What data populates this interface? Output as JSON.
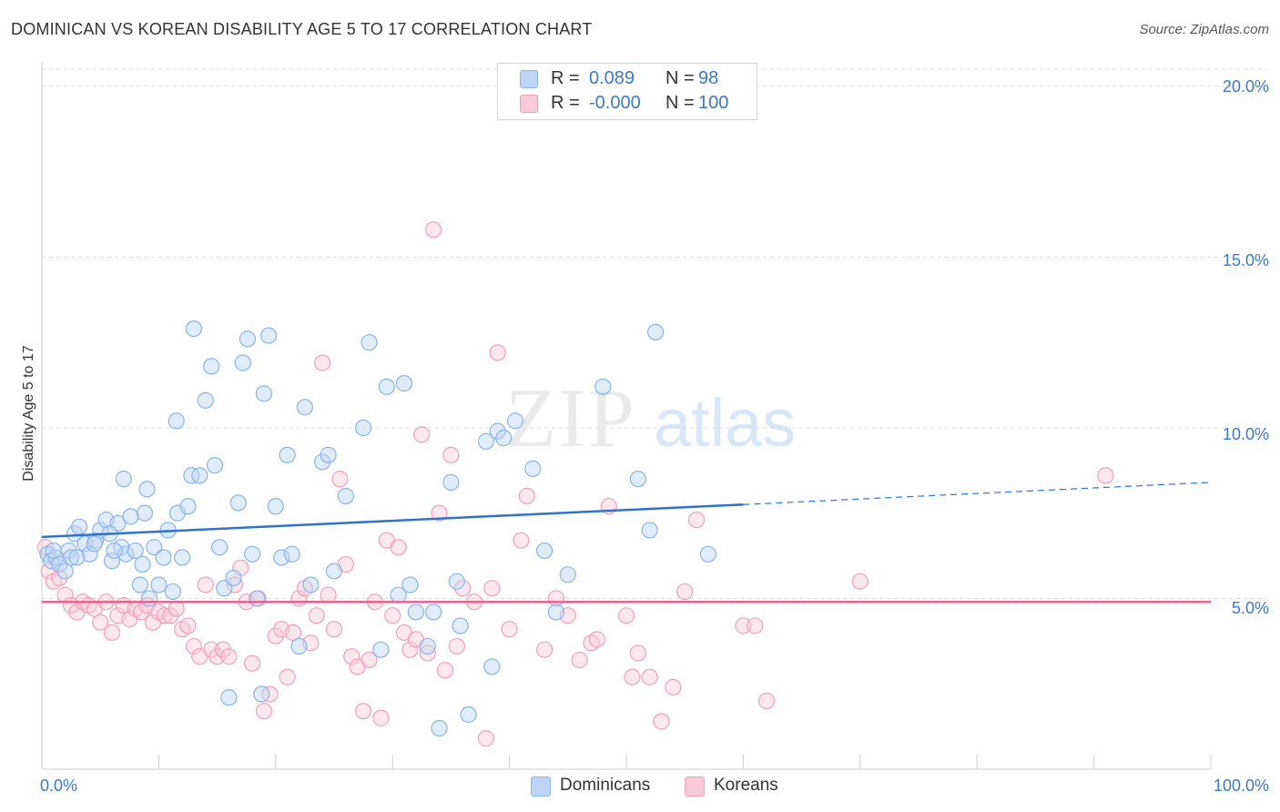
{
  "title": "DOMINICAN VS KOREAN DISABILITY AGE 5 TO 17 CORRELATION CHART",
  "source": "Source: ZipAtlas.com",
  "colors": {
    "blue": "#8ab4e8",
    "blue_line": "#2f72c9",
    "pink": "#f2a0b8",
    "pink_line": "#e8628e",
    "axis_text": "#3a78c9"
  },
  "legend": {
    "rows": [
      {
        "r_label": "R =",
        "r_value": "0.089",
        "n_label": "N =",
        "n_value": "98"
      },
      {
        "r_label": "R =",
        "r_value": "-0.000",
        "n_label": "N =",
        "n_value": "100"
      }
    ]
  },
  "bottom_legend": {
    "items": [
      {
        "label": "Dominicans"
      },
      {
        "label": "Koreans"
      }
    ]
  },
  "chart_data": {
    "type": "scatter",
    "title": "DOMINICAN VS KOREAN DISABILITY AGE 5 TO 17 CORRELATION CHART",
    "ylabel": "Disability Age 5 to 17",
    "xlabel": "",
    "x_tick_labels": [
      "0.0%",
      "100.0%"
    ],
    "y_tick_labels": [
      "5.0%",
      "10.0%",
      "15.0%",
      "20.0%"
    ],
    "y_ticks": [
      5,
      10,
      15,
      20
    ],
    "xlim": [
      0,
      100
    ],
    "ylim": [
      0,
      20.5
    ],
    "grid": "horizontal dashed",
    "legend_position": "top-center",
    "watermark": "ZIPatlas",
    "series": [
      {
        "name": "Dominicans",
        "R": 0.089,
        "N": 98,
        "trend": {
          "x_solid_end": 60,
          "x_dashed_end": 100,
          "y_at_0": 6.8,
          "y_at_60": 7.75,
          "y_at_100": 8.4
        },
        "points": [
          [
            0.5,
            6.3
          ],
          [
            0.8,
            6.1
          ],
          [
            1.2,
            6.2
          ],
          [
            1.5,
            6.0
          ],
          [
            2.0,
            5.8
          ],
          [
            2.3,
            6.4
          ],
          [
            2.8,
            6.9
          ],
          [
            3.2,
            7.1
          ],
          [
            3.7,
            6.6
          ],
          [
            4.1,
            6.3
          ],
          [
            4.6,
            6.7
          ],
          [
            5.0,
            7.0
          ],
          [
            5.5,
            7.3
          ],
          [
            6.0,
            6.1
          ],
          [
            6.5,
            7.2
          ],
          [
            6.8,
            6.5
          ],
          [
            7.2,
            6.3
          ],
          [
            7.6,
            7.4
          ],
          [
            8.0,
            6.4
          ],
          [
            8.4,
            5.4
          ],
          [
            8.8,
            7.5
          ],
          [
            9.2,
            5.0
          ],
          [
            9.6,
            6.5
          ],
          [
            10.0,
            5.4
          ],
          [
            10.4,
            6.2
          ],
          [
            10.8,
            7.0
          ],
          [
            11.2,
            5.2
          ],
          [
            11.6,
            7.5
          ],
          [
            12.0,
            6.2
          ],
          [
            12.5,
            7.7
          ],
          [
            7.0,
            8.5
          ],
          [
            9.0,
            8.2
          ],
          [
            11.5,
            10.2
          ],
          [
            12.8,
            8.6
          ],
          [
            13.5,
            8.6
          ],
          [
            14.0,
            10.8
          ],
          [
            14.5,
            11.8
          ],
          [
            13.0,
            12.9
          ],
          [
            14.8,
            8.9
          ],
          [
            15.2,
            6.5
          ],
          [
            15.6,
            5.3
          ],
          [
            16.0,
            2.1
          ],
          [
            16.4,
            5.6
          ],
          [
            16.8,
            7.8
          ],
          [
            17.2,
            11.9
          ],
          [
            17.6,
            12.6
          ],
          [
            18.0,
            6.3
          ],
          [
            18.4,
            5.0
          ],
          [
            18.8,
            2.2
          ],
          [
            19.0,
            11.0
          ],
          [
            19.4,
            12.7
          ],
          [
            20.0,
            7.7
          ],
          [
            20.5,
            6.2
          ],
          [
            21.0,
            9.2
          ],
          [
            21.4,
            6.3
          ],
          [
            22.0,
            3.6
          ],
          [
            22.5,
            10.6
          ],
          [
            23.0,
            5.4
          ],
          [
            24.0,
            9.0
          ],
          [
            24.5,
            9.2
          ],
          [
            25.0,
            5.8
          ],
          [
            26.0,
            8.0
          ],
          [
            27.5,
            10.0
          ],
          [
            28.0,
            12.5
          ],
          [
            29.0,
            3.5
          ],
          [
            29.5,
            11.2
          ],
          [
            30.5,
            5.1
          ],
          [
            31.0,
            11.3
          ],
          [
            31.5,
            5.4
          ],
          [
            32.0,
            4.6
          ],
          [
            33.0,
            3.6
          ],
          [
            33.5,
            4.6
          ],
          [
            34.0,
            1.2
          ],
          [
            35.0,
            8.4
          ],
          [
            35.5,
            5.5
          ],
          [
            35.8,
            4.2
          ],
          [
            36.5,
            1.6
          ],
          [
            38.0,
            9.6
          ],
          [
            39.0,
            9.9
          ],
          [
            39.5,
            9.7
          ],
          [
            38.5,
            3.0
          ],
          [
            40.5,
            10.2
          ],
          [
            42.0,
            8.8
          ],
          [
            43.0,
            6.4
          ],
          [
            44.0,
            4.6
          ],
          [
            45.0,
            5.7
          ],
          [
            48.0,
            11.2
          ],
          [
            51.0,
            8.5
          ],
          [
            52.0,
            7.0
          ],
          [
            52.5,
            12.8
          ],
          [
            57.0,
            6.3
          ],
          [
            2.5,
            6.2
          ],
          [
            3.0,
            6.2
          ],
          [
            6.2,
            6.4
          ],
          [
            1.0,
            6.4
          ],
          [
            4.5,
            6.6
          ],
          [
            5.8,
            6.9
          ],
          [
            8.6,
            6.0
          ]
        ]
      },
      {
        "name": "Koreans",
        "R": -0.0,
        "N": 100,
        "trend": {
          "x_solid_end": 100,
          "y_at_0": 4.9,
          "y_at_100": 4.9
        },
        "points": [
          [
            0.3,
            6.5
          ],
          [
            0.6,
            5.8
          ],
          [
            1.0,
            5.5
          ],
          [
            1.5,
            5.6
          ],
          [
            2.0,
            5.1
          ],
          [
            2.5,
            4.8
          ],
          [
            3.0,
            4.6
          ],
          [
            3.5,
            4.9
          ],
          [
            4.0,
            4.8
          ],
          [
            4.5,
            4.7
          ],
          [
            5.0,
            4.3
          ],
          [
            5.5,
            4.9
          ],
          [
            6.0,
            4.0
          ],
          [
            6.5,
            4.5
          ],
          [
            7.0,
            4.8
          ],
          [
            7.5,
            4.4
          ],
          [
            8.0,
            4.7
          ],
          [
            8.5,
            4.6
          ],
          [
            9.0,
            4.8
          ],
          [
            9.5,
            4.3
          ],
          [
            10.0,
            4.6
          ],
          [
            10.5,
            4.5
          ],
          [
            11.0,
            4.5
          ],
          [
            11.5,
            4.7
          ],
          [
            12.0,
            4.1
          ],
          [
            12.5,
            4.2
          ],
          [
            13.0,
            3.6
          ],
          [
            13.5,
            3.3
          ],
          [
            14.0,
            5.4
          ],
          [
            14.5,
            3.5
          ],
          [
            15.0,
            3.3
          ],
          [
            15.5,
            3.5
          ],
          [
            16.0,
            3.3
          ],
          [
            16.5,
            5.4
          ],
          [
            17.0,
            5.9
          ],
          [
            17.5,
            4.9
          ],
          [
            18.0,
            3.1
          ],
          [
            18.5,
            5.0
          ],
          [
            19.0,
            1.7
          ],
          [
            19.5,
            2.2
          ],
          [
            20.0,
            3.9
          ],
          [
            20.5,
            4.1
          ],
          [
            21.0,
            2.7
          ],
          [
            21.5,
            4.0
          ],
          [
            22.0,
            5.0
          ],
          [
            22.5,
            5.3
          ],
          [
            23.0,
            3.7
          ],
          [
            23.5,
            4.5
          ],
          [
            24.0,
            11.9
          ],
          [
            24.5,
            5.1
          ],
          [
            25.0,
            4.1
          ],
          [
            25.5,
            8.5
          ],
          [
            26.0,
            6.0
          ],
          [
            26.5,
            3.3
          ],
          [
            27.0,
            3.0
          ],
          [
            27.5,
            1.7
          ],
          [
            28.0,
            3.2
          ],
          [
            28.5,
            4.9
          ],
          [
            29.0,
            1.5
          ],
          [
            29.5,
            6.7
          ],
          [
            30.0,
            4.5
          ],
          [
            30.5,
            6.5
          ],
          [
            31.0,
            4.0
          ],
          [
            31.5,
            3.5
          ],
          [
            32.0,
            3.8
          ],
          [
            32.5,
            9.8
          ],
          [
            33.0,
            3.4
          ],
          [
            33.5,
            15.8
          ],
          [
            34.0,
            7.5
          ],
          [
            34.5,
            2.9
          ],
          [
            35.0,
            9.2
          ],
          [
            35.5,
            3.6
          ],
          [
            36.0,
            5.3
          ],
          [
            37.0,
            4.9
          ],
          [
            38.0,
            0.9
          ],
          [
            38.5,
            5.3
          ],
          [
            39.0,
            12.2
          ],
          [
            40.0,
            4.1
          ],
          [
            41.0,
            6.7
          ],
          [
            41.5,
            8.0
          ],
          [
            43.0,
            3.5
          ],
          [
            44.0,
            5.0
          ],
          [
            45.0,
            4.5
          ],
          [
            46.0,
            3.2
          ],
          [
            47.0,
            3.7
          ],
          [
            47.5,
            3.8
          ],
          [
            48.5,
            7.7
          ],
          [
            50.0,
            4.5
          ],
          [
            50.5,
            2.7
          ],
          [
            51.0,
            3.4
          ],
          [
            52.0,
            2.7
          ],
          [
            53.0,
            1.4
          ],
          [
            54.0,
            2.4
          ],
          [
            55.0,
            5.2
          ],
          [
            56.0,
            7.3
          ],
          [
            60.0,
            4.2
          ],
          [
            61.0,
            4.2
          ],
          [
            62.0,
            2.0
          ],
          [
            70.0,
            5.5
          ],
          [
            91.0,
            8.6
          ]
        ]
      }
    ]
  }
}
